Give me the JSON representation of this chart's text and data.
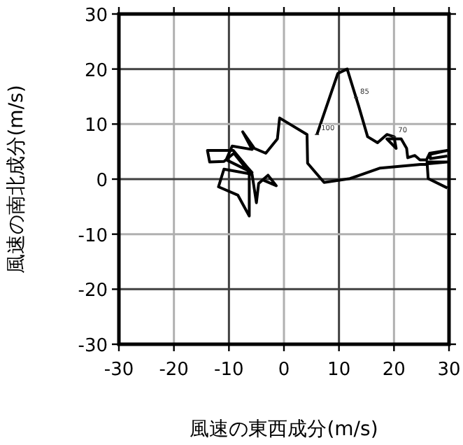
{
  "chart_data": {
    "type": "line",
    "xlabel": "風速の東西成分(m/s)",
    "ylabel": "風速の南北成分(m/s)",
    "xlim": [
      -30,
      30
    ],
    "ylim": [
      -30,
      30
    ],
    "xticks": [
      -30,
      -20,
      -10,
      0,
      10,
      20,
      30
    ],
    "yticks": [
      -30,
      -20,
      -10,
      0,
      10,
      20,
      30
    ],
    "grid": true,
    "series": [
      {
        "color": "#000000",
        "x": [
          29.7,
          26.2,
          26.0,
          29.7,
          17.5,
          12.0,
          7.3,
          4.3,
          4.2,
          -0.8,
          -1.2,
          -3.3,
          -5.4,
          -7.5,
          -5.8,
          -9.4,
          -10.5,
          -5.8,
          -6.7,
          -9.2,
          -13.9,
          -13.5,
          -10.9,
          -9.1,
          -6.3,
          -6.3,
          -8.4,
          -11.9,
          -10.9,
          -5.8,
          -5.0,
          -4.6,
          -2.9,
          -1.4,
          -3.7,
          null,
          6.0,
          9.8,
          11.5,
          13.6,
          15.2,
          17.0,
          18.7,
          20.0,
          20.4,
          18.7,
          21.3,
          22.3,
          22.5,
          23.8,
          24.7,
          25.9,
          26.5,
          29.7,
          26.6,
          26.6,
          29.7
        ],
        "values": [
          -1.6,
          0.1,
          3.1,
          3.1,
          2.0,
          0.1,
          -0.6,
          2.9,
          8.1,
          11.1,
          7.3,
          4.7,
          5.6,
          8.6,
          5.4,
          6.0,
          3.5,
          1.2,
          2.2,
          5.2,
          5.2,
          3.1,
          3.2,
          4.7,
          1.2,
          -6.7,
          -2.9,
          -1.4,
          1.8,
          0.9,
          -4.3,
          -0.8,
          0.7,
          -1.2,
          -0.2,
          null,
          8.1,
          19.2,
          20.0,
          13.2,
          7.7,
          6.6,
          8.1,
          7.7,
          5.6,
          7.3,
          7.3,
          5.6,
          3.9,
          4.3,
          3.5,
          3.5,
          4.7,
          5.2,
          4.5,
          3.7,
          4.2
        ]
      }
    ],
    "annotations": [
      {
        "text": "100",
        "x": 6.0,
        "y": 8.1
      },
      {
        "text": "85",
        "x": 13.1,
        "y": 14.8
      },
      {
        "text": "70",
        "x": 20.0,
        "y": 7.7
      }
    ]
  }
}
